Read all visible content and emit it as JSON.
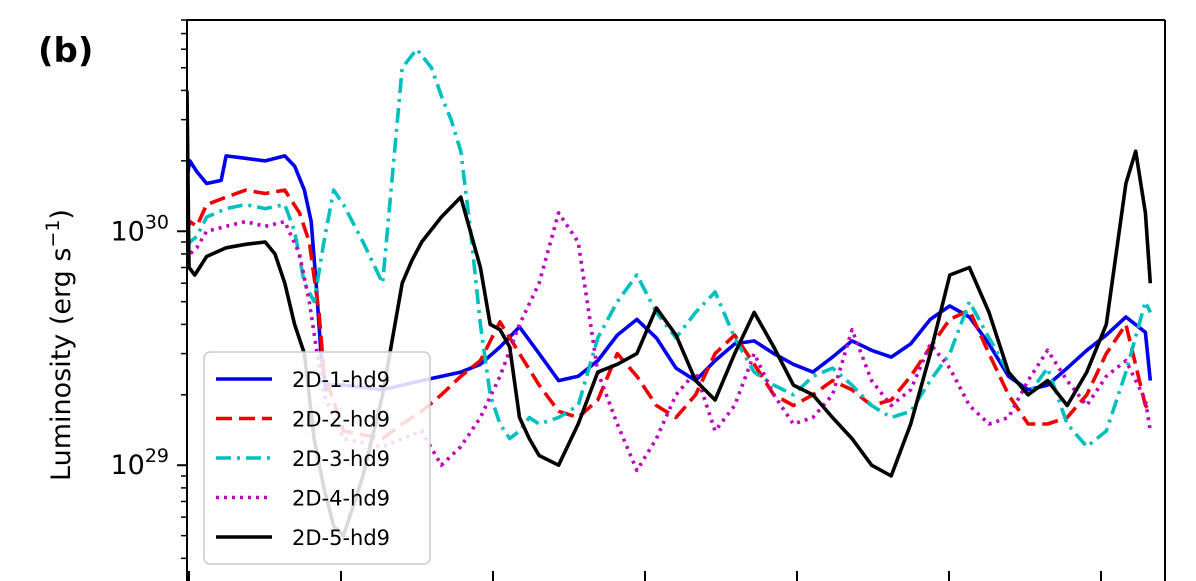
{
  "panel_label": "(b)",
  "chart_data": {
    "type": "line",
    "title": "",
    "xlabel": "",
    "ylabel_main": "Luminosity (erg s",
    "ylabel_sup": "−1",
    "ylabel_close": ")",
    "yscale": "log",
    "ylim": [
      3.2e+28,
      8e+30
    ],
    "xlim": [
      0,
      1
    ],
    "yticks": [
      {
        "value": 1e+29,
        "base": "10",
        "exp": "29"
      },
      {
        "value": 1e+30,
        "base": "10",
        "exp": "30"
      }
    ],
    "x_tick_count": 7,
    "legend": {
      "position": "lower-left"
    },
    "series": [
      {
        "name": "2D-1-hd9",
        "color": "#0000ee",
        "dash": "solid",
        "x": [
          0,
          0.003,
          0.01,
          0.02,
          0.035,
          0.04,
          0.06,
          0.08,
          0.1,
          0.11,
          0.12,
          0.127,
          0.132,
          0.137,
          0.142,
          0.147,
          0.16,
          0.2,
          0.24,
          0.28,
          0.3,
          0.32,
          0.34,
          0.36,
          0.38,
          0.4,
          0.42,
          0.44,
          0.46,
          0.48,
          0.5,
          0.52,
          0.54,
          0.56,
          0.58,
          0.6,
          0.62,
          0.64,
          0.66,
          0.68,
          0.7,
          0.72,
          0.74,
          0.76,
          0.78,
          0.8,
          0.82,
          0.84,
          0.86,
          0.88,
          0.9,
          0.92,
          0.94,
          0.96,
          0.98,
          0.985
        ],
        "y": [
          1.7e+30,
          2e+30,
          1.8e+30,
          1.6e+30,
          1.65e+30,
          2.1e+30,
          2.05e+30,
          2e+30,
          2.1e+30,
          1.9e+30,
          1.5e+30,
          1.1e+30,
          6e+29,
          3e+29,
          2.1e+29,
          2.2e+29,
          2.2e+29,
          2.1e+29,
          2.3e+29,
          2.5e+29,
          2.7e+29,
          3.2e+29,
          3.9e+29,
          3e+29,
          2.3e+29,
          2.4e+29,
          2.8e+29,
          3.6e+29,
          4.2e+29,
          3.5e+29,
          2.6e+29,
          2.3e+29,
          2.8e+29,
          3.3e+29,
          3.4e+29,
          3e+29,
          2.7e+29,
          2.5e+29,
          2.9e+29,
          3.4e+29,
          3.1e+29,
          2.9e+29,
          3.3e+29,
          4.2e+29,
          4.8e+29,
          4.3e+29,
          3.3e+29,
          2.4e+29,
          2.1e+29,
          2.2e+29,
          2.6e+29,
          3.1e+29,
          3.6e+29,
          4.3e+29,
          3.7e+29,
          2.3e+29
        ]
      },
      {
        "name": "2D-2-hd9",
        "color": "#ee0000",
        "dash": "dashed",
        "x": [
          0,
          0.003,
          0.01,
          0.02,
          0.04,
          0.06,
          0.08,
          0.1,
          0.115,
          0.125,
          0.135,
          0.14,
          0.16,
          0.2,
          0.22,
          0.24,
          0.26,
          0.28,
          0.3,
          0.32,
          0.34,
          0.36,
          0.38,
          0.4,
          0.42,
          0.44,
          0.46,
          0.48,
          0.5,
          0.52,
          0.54,
          0.56,
          0.58,
          0.6,
          0.62,
          0.64,
          0.66,
          0.68,
          0.7,
          0.72,
          0.74,
          0.76,
          0.78,
          0.8,
          0.82,
          0.84,
          0.86,
          0.88,
          0.9,
          0.92,
          0.94,
          0.96,
          0.98,
          0.985
        ],
        "y": [
          1e+30,
          1.1e+30,
          1.05e+30,
          1.3e+30,
          1.4e+30,
          1.5e+30,
          1.45e+30,
          1.5e+30,
          1.2e+30,
          9e+29,
          4.5e+29,
          2.5e+29,
          1.4e+29,
          1.3e+29,
          1.5e+29,
          1.7e+29,
          2e+29,
          2.4e+29,
          2.8e+29,
          4.1e+29,
          3e+29,
          2.2e+29,
          1.7e+29,
          1.6e+29,
          1.9e+29,
          3e+29,
          2.4e+29,
          1.8e+29,
          1.6e+29,
          2e+29,
          3e+29,
          3.6e+29,
          2.7e+29,
          2e+29,
          1.8e+29,
          2e+29,
          2.3e+29,
          2.1e+29,
          1.8e+29,
          1.9e+29,
          2.4e+29,
          3.2e+29,
          4.2e+29,
          4.6e+29,
          3e+29,
          2e+29,
          1.5e+29,
          1.5e+29,
          1.6e+29,
          2e+29,
          3e+29,
          4e+29,
          1.8e+29,
          1.7e+29
        ]
      },
      {
        "name": "2D-3-hd9",
        "color": "#00bfbf",
        "dash": "dashdot",
        "x": [
          0,
          0.003,
          0.01,
          0.02,
          0.04,
          0.06,
          0.08,
          0.1,
          0.11,
          0.12,
          0.13,
          0.14,
          0.15,
          0.16,
          0.18,
          0.2,
          0.22,
          0.235,
          0.25,
          0.26,
          0.27,
          0.28,
          0.29,
          0.3,
          0.31,
          0.32,
          0.33,
          0.34,
          0.35,
          0.36,
          0.38,
          0.4,
          0.42,
          0.44,
          0.46,
          0.48,
          0.5,
          0.52,
          0.54,
          0.56,
          0.58,
          0.6,
          0.62,
          0.64,
          0.66,
          0.68,
          0.7,
          0.72,
          0.74,
          0.76,
          0.78,
          0.8,
          0.82,
          0.84,
          0.86,
          0.88,
          0.9,
          0.92,
          0.94,
          0.96,
          0.98,
          0.985
        ],
        "y": [
          8.5e+29,
          9e+29,
          9.5e+29,
          1.15e+30,
          1.25e+30,
          1.3e+30,
          1.25e+30,
          1.3e+30,
          1e+30,
          6e+29,
          5e+29,
          9e+29,
          1.5e+30,
          1.3e+30,
          9e+29,
          6e+29,
          5e+30,
          6e+30,
          5e+30,
          3.8e+30,
          3e+30,
          2.2e+30,
          1e+30,
          4e+29,
          2e+29,
          1.5e+29,
          1.3e+29,
          1.4e+29,
          1.6e+29,
          1.5e+29,
          1.6e+29,
          1.8e+29,
          3.5e+29,
          5e+29,
          6.5e+29,
          4.5e+29,
          3.5e+29,
          4.5e+29,
          5.5e+29,
          3.5e+29,
          2.5e+29,
          2.2e+29,
          2e+29,
          2.4e+29,
          2.6e+29,
          2.2e+29,
          1.8e+29,
          1.6e+29,
          1.7e+29,
          2.3e+29,
          3e+29,
          5e+29,
          3.5e+29,
          2.5e+29,
          2e+29,
          2.6e+29,
          1.5e+29,
          1.2e+29,
          1.4e+29,
          2.5e+29,
          5e+29,
          4.5e+29
        ]
      },
      {
        "name": "2D-4-hd9",
        "color": "#bf00bf",
        "dash": "dotted",
        "x": [
          0,
          0.003,
          0.01,
          0.02,
          0.04,
          0.06,
          0.08,
          0.1,
          0.115,
          0.125,
          0.133,
          0.14,
          0.16,
          0.2,
          0.22,
          0.24,
          0.26,
          0.28,
          0.3,
          0.32,
          0.34,
          0.36,
          0.38,
          0.4,
          0.42,
          0.44,
          0.46,
          0.48,
          0.5,
          0.52,
          0.54,
          0.56,
          0.58,
          0.6,
          0.62,
          0.64,
          0.66,
          0.68,
          0.7,
          0.72,
          0.74,
          0.76,
          0.78,
          0.8,
          0.82,
          0.84,
          0.86,
          0.88,
          0.9,
          0.92,
          0.94,
          0.96,
          0.98,
          0.985
        ],
        "y": [
          7.5e+29,
          8e+29,
          8.5e+29,
          1e+30,
          1.05e+30,
          1.1e+30,
          1.05e+30,
          1.1e+30,
          8e+29,
          5e+29,
          3e+29,
          2e+29,
          1.3e+29,
          1.2e+29,
          1.3e+29,
          1.4e+29,
          1e+29,
          1.2e+29,
          1.6e+29,
          2.4e+29,
          4e+29,
          6e+29,
          1.2e+30,
          9e+29,
          2.5e+29,
          1.5e+29,
          9.5e+28,
          1.3e+29,
          2e+29,
          2.5e+29,
          1.4e+29,
          1.8e+29,
          3e+29,
          2e+29,
          1.5e+29,
          1.6e+29,
          2e+29,
          3.8e+29,
          2.3e+29,
          1.8e+29,
          2.1e+29,
          3.3e+29,
          2.6e+29,
          1.8e+29,
          1.5e+29,
          1.6e+29,
          2.3e+29,
          3.1e+29,
          2.3e+29,
          1.8e+29,
          2.4e+29,
          2.8e+29,
          1.9e+29,
          1.4e+29
        ]
      },
      {
        "name": "2D-5-hd9",
        "color": "#000000",
        "dash": "solid",
        "x": [
          0,
          0.002,
          0.008,
          0.02,
          0.04,
          0.06,
          0.08,
          0.09,
          0.1,
          0.11,
          0.12,
          0.13,
          0.14,
          0.15,
          0.16,
          0.18,
          0.2,
          0.22,
          0.23,
          0.24,
          0.26,
          0.28,
          0.3,
          0.31,
          0.32,
          0.33,
          0.34,
          0.35,
          0.36,
          0.38,
          0.4,
          0.42,
          0.44,
          0.46,
          0.48,
          0.5,
          0.52,
          0.54,
          0.56,
          0.58,
          0.6,
          0.62,
          0.64,
          0.66,
          0.68,
          0.7,
          0.72,
          0.74,
          0.76,
          0.78,
          0.8,
          0.82,
          0.84,
          0.86,
          0.88,
          0.9,
          0.92,
          0.94,
          0.96,
          0.97,
          0.98,
          0.985
        ],
        "y": [
          4e+30,
          7e+29,
          6.5e+29,
          7.8e+29,
          8.5e+29,
          8.8e+29,
          9e+29,
          8e+29,
          6e+29,
          4e+29,
          3e+29,
          1.3e+29,
          8e+28,
          5.5e+28,
          5e+28,
          9e+28,
          2e+29,
          6e+29,
          7.5e+29,
          9e+29,
          1.15e+30,
          1.4e+30,
          7e+29,
          4e+29,
          3.8e+29,
          3.2e+29,
          1.6e+29,
          1.3e+29,
          1.1e+29,
          1e+29,
          1.5e+29,
          2.5e+29,
          2.7e+29,
          3e+29,
          4.7e+29,
          3.6e+29,
          2.3e+29,
          1.9e+29,
          3e+29,
          4.5e+29,
          3.2e+29,
          2.2e+29,
          2e+29,
          1.6e+29,
          1.3e+29,
          1e+29,
          9e+28,
          1.5e+29,
          3e+29,
          6.5e+29,
          7e+29,
          4.5e+29,
          2.5e+29,
          2e+29,
          2.3e+29,
          1.8e+29,
          2.5e+29,
          4e+29,
          1.6e+30,
          2.2e+30,
          1.2e+30,
          6e+29
        ]
      }
    ]
  }
}
